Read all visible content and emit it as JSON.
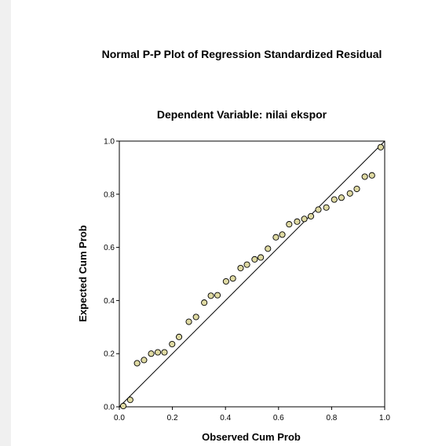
{
  "chart_data": {
    "type": "scatter",
    "title": "Normal P-P Plot of Regression Standardized Residual",
    "subtitle": "Dependent Variable: nilai ekspor",
    "xlabel": "Observed Cum Prob",
    "ylabel": "Expected Cum Prob",
    "xlim": [
      0,
      1
    ],
    "ylim": [
      0,
      1
    ],
    "x_ticks": [
      "0.0",
      "0.2",
      "0.4",
      "0.6",
      "0.8",
      "1.0"
    ],
    "y_ticks": [
      "0.0",
      "0.2",
      "0.4",
      "0.6",
      "0.8",
      "1.0"
    ],
    "reference_line": [
      [
        0,
        0
      ],
      [
        1,
        1
      ]
    ],
    "grid": false,
    "colors": {
      "point_fill": "#ded9a2",
      "point_stroke": "#000000",
      "line": "#000000"
    },
    "points": [
      [
        0.015,
        0.003
      ],
      [
        0.041,
        0.026
      ],
      [
        0.067,
        0.164
      ],
      [
        0.093,
        0.176
      ],
      [
        0.12,
        0.2
      ],
      [
        0.145,
        0.205
      ],
      [
        0.17,
        0.205
      ],
      [
        0.199,
        0.236
      ],
      [
        0.225,
        0.263
      ],
      [
        0.262,
        0.32
      ],
      [
        0.289,
        0.338
      ],
      [
        0.32,
        0.392
      ],
      [
        0.345,
        0.418
      ],
      [
        0.37,
        0.42
      ],
      [
        0.402,
        0.472
      ],
      [
        0.428,
        0.483
      ],
      [
        0.457,
        0.522
      ],
      [
        0.481,
        0.535
      ],
      [
        0.51,
        0.555
      ],
      [
        0.533,
        0.562
      ],
      [
        0.56,
        0.595
      ],
      [
        0.59,
        0.638
      ],
      [
        0.614,
        0.648
      ],
      [
        0.64,
        0.687
      ],
      [
        0.67,
        0.697
      ],
      [
        0.697,
        0.707
      ],
      [
        0.722,
        0.717
      ],
      [
        0.75,
        0.742
      ],
      [
        0.78,
        0.75
      ],
      [
        0.81,
        0.78
      ],
      [
        0.837,
        0.787
      ],
      [
        0.869,
        0.803
      ],
      [
        0.895,
        0.82
      ],
      [
        0.925,
        0.866
      ],
      [
        0.952,
        0.871
      ],
      [
        0.985,
        0.977
      ]
    ]
  }
}
